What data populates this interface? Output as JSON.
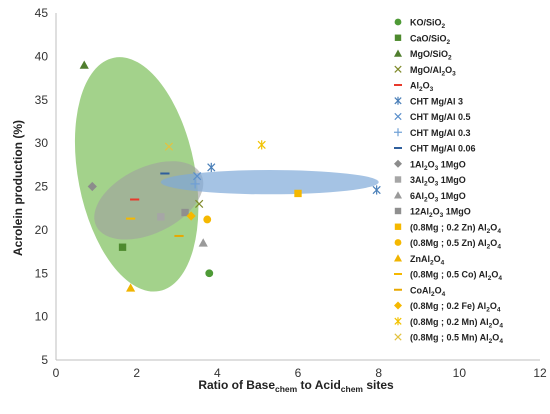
{
  "chart_data": {
    "type": "scatter",
    "title": "",
    "xlabel": {
      "pre": "Ratio of Base",
      "sub1": "chem",
      "mid": " to Acid",
      "sub2": "chem",
      "post": " sites"
    },
    "ylabel": "Acrolein production (%)",
    "xlim": [
      0,
      12
    ],
    "ylim": [
      5,
      45
    ],
    "xticks": [
      0,
      2,
      4,
      6,
      8,
      10,
      12
    ],
    "yticks": [
      5,
      10,
      15,
      20,
      25,
      30,
      35,
      40,
      45
    ],
    "grid": false,
    "legend_position": "right",
    "regions": [
      {
        "color": "#7cbf5a",
        "cx": 2.0,
        "cy": 26.4,
        "rx": 1.45,
        "ry": 13.7,
        "angle_deg": -11,
        "opacity": 0.7
      },
      {
        "color": "#a0a0a0",
        "cx": 2.3,
        "cy": 23.4,
        "rx": 1.45,
        "ry": 3.8,
        "angle_deg": -26,
        "opacity": 0.6
      },
      {
        "color": "#7fa9d9",
        "cx": 5.3,
        "cy": 25.5,
        "rx": 2.7,
        "ry": 1.4,
        "angle_deg": 0,
        "opacity": 0.7
      }
    ],
    "series": [
      {
        "label": [
          "KO/SiO",
          {
            "sub": "2"
          }
        ],
        "marker": "circle",
        "color": "#4e9a36",
        "points": [
          [
            3.8,
            15.0
          ]
        ]
      },
      {
        "label": [
          "CaO/SiO",
          {
            "sub": "2"
          }
        ],
        "marker": "square",
        "color": "#4e8a2e",
        "points": [
          [
            1.65,
            18.0
          ]
        ]
      },
      {
        "label": [
          "MgO/SiO",
          {
            "sub": "2"
          }
        ],
        "marker": "triangle",
        "color": "#507e2e",
        "points": [
          [
            0.7,
            39.0
          ]
        ]
      },
      {
        "label": [
          "MgO/Al",
          {
            "sub": "2"
          },
          "O",
          {
            "sub": "3"
          }
        ],
        "marker": "x",
        "color": "#7f8a2a",
        "points": [
          [
            3.55,
            23.0
          ]
        ]
      },
      {
        "label": [
          "Al",
          {
            "sub": "2"
          },
          "O",
          {
            "sub": "3"
          }
        ],
        "marker": "dash",
        "color": "#e83a2c",
        "points": [
          [
            1.95,
            23.5
          ]
        ]
      },
      {
        "label": [
          "CHT Mg/Al 3"
        ],
        "marker": "asterisk",
        "color": "#4a7fb8",
        "points": [
          [
            3.85,
            27.2
          ],
          [
            7.95,
            24.6
          ]
        ]
      },
      {
        "label": [
          "CHT Mg/Al 0.5"
        ],
        "marker": "x",
        "color": "#5b8fcb",
        "points": [
          [
            3.5,
            26.2
          ]
        ]
      },
      {
        "label": [
          "CHT Mg/Al 0.3"
        ],
        "marker": "plus",
        "color": "#6f9fd6",
        "points": [
          [
            3.45,
            25.3
          ]
        ]
      },
      {
        "label": [
          "CHT Mg/Al 0.06"
        ],
        "marker": "dash",
        "color": "#2f5f9c",
        "points": [
          [
            2.7,
            26.5
          ]
        ]
      },
      {
        "label": [
          "1Al",
          {
            "sub": "2"
          },
          "O",
          {
            "sub": "3"
          },
          " 1MgO"
        ],
        "marker": "diamond",
        "color": "#8c8c8c",
        "points": [
          [
            0.9,
            25.0
          ]
        ]
      },
      {
        "label": [
          "3Al",
          {
            "sub": "2"
          },
          "O",
          {
            "sub": "3"
          },
          " 1MgO"
        ],
        "marker": "square",
        "color": "#a6a6a6",
        "points": [
          [
            2.6,
            21.5
          ]
        ]
      },
      {
        "label": [
          "6Al",
          {
            "sub": "2"
          },
          "O",
          {
            "sub": "3"
          },
          " 1MgO"
        ],
        "marker": "triangle",
        "color": "#9a9a9a",
        "points": [
          [
            3.65,
            18.5
          ]
        ]
      },
      {
        "label": [
          "12Al",
          {
            "sub": "2"
          },
          "O",
          {
            "sub": "3"
          },
          " 1MgO"
        ],
        "marker": "square",
        "color": "#8f8f8f",
        "points": [
          [
            3.2,
            22.0
          ]
        ]
      },
      {
        "label": [
          "(0.8Mg ; 0.2 Zn) Al",
          {
            "sub": "2"
          },
          "O",
          {
            "sub": "4"
          }
        ],
        "marker": "square",
        "color": "#f5b800",
        "points": [
          [
            6.0,
            24.2
          ]
        ]
      },
      {
        "label": [
          "(0.8Mg ; 0.5 Zn) Al",
          {
            "sub": "2"
          },
          "O",
          {
            "sub": "4"
          }
        ],
        "marker": "circle",
        "color": "#f5b800",
        "points": [
          [
            3.75,
            21.2
          ]
        ]
      },
      {
        "label": [
          "ZnAl",
          {
            "sub": "2"
          },
          "O",
          {
            "sub": "4"
          }
        ],
        "marker": "triangle",
        "color": "#f0b400",
        "points": [
          [
            1.85,
            13.3
          ]
        ]
      },
      {
        "label": [
          "(0.8Mg ; 0.5 Co) Al",
          {
            "sub": "2"
          },
          "O",
          {
            "sub": "4"
          }
        ],
        "marker": "dash",
        "color": "#f5b800",
        "points": [
          [
            1.85,
            21.3
          ]
        ]
      },
      {
        "label": [
          "CoAl",
          {
            "sub": "2"
          },
          "O",
          {
            "sub": "4"
          }
        ],
        "marker": "dash",
        "color": "#e8a800",
        "points": [
          [
            3.05,
            19.3
          ]
        ]
      },
      {
        "label": [
          "(0.8Mg ; 0.2 Fe) Al",
          {
            "sub": "2"
          },
          "O",
          {
            "sub": "4"
          }
        ],
        "marker": "diamond",
        "color": "#f5b800",
        "points": [
          [
            3.35,
            21.6
          ]
        ]
      },
      {
        "label": [
          "(0.8Mg ; 0.2 Mn) Al",
          {
            "sub": "2"
          },
          "O",
          {
            "sub": "4"
          }
        ],
        "marker": "asterisk",
        "color": "#f2c200",
        "points": [
          [
            5.1,
            29.8
          ]
        ]
      },
      {
        "label": [
          "(0.8Mg ; 0.5 Mn) Al",
          {
            "sub": "2"
          },
          "O",
          {
            "sub": "4"
          }
        ],
        "marker": "x",
        "color": "#e3c240",
        "points": [
          [
            2.8,
            29.6
          ]
        ]
      }
    ]
  }
}
